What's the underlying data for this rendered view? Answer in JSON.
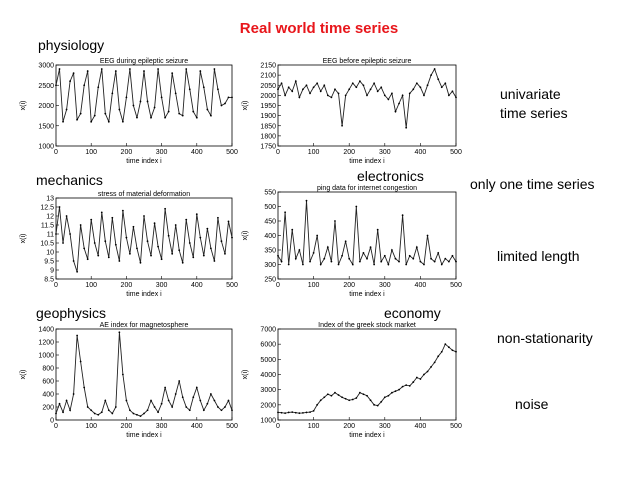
{
  "slide": {
    "title": "Real world time series",
    "title_color": "#e8161b"
  },
  "labels": {
    "physiology": "physiology",
    "mechanics": "mechanics",
    "electronics": "electronics",
    "geophysics": "geophysics",
    "economy": "economy"
  },
  "bullets": [
    {
      "line1": "univariate",
      "line2": "time series"
    },
    {
      "line1": "only one time series",
      "line2": ""
    },
    {
      "line1": "limited length",
      "line2": ""
    },
    {
      "line1": "non-stationarity",
      "line2": ""
    },
    {
      "line1": "noise",
      "line2": ""
    }
  ],
  "chart_data": [
    {
      "type": "line",
      "title": "EEG during epileptic seizure",
      "xlabel": "time index i",
      "ylabel": "x(i)",
      "xlim": [
        0,
        500
      ],
      "ylim": [
        1000,
        3000
      ],
      "xticks": [
        0,
        100,
        200,
        300,
        400,
        500
      ],
      "yticks": [
        1000,
        1500,
        2000,
        2500,
        3000
      ],
      "x": [
        0,
        10,
        20,
        30,
        40,
        50,
        60,
        70,
        80,
        90,
        100,
        110,
        120,
        130,
        140,
        150,
        160,
        170,
        180,
        190,
        200,
        210,
        220,
        230,
        240,
        250,
        260,
        270,
        280,
        290,
        300,
        310,
        320,
        330,
        340,
        350,
        360,
        370,
        380,
        390,
        400,
        410,
        420,
        430,
        440,
        450,
        460,
        470,
        480,
        490,
        500
      ],
      "y": [
        2500,
        2900,
        1600,
        1900,
        2600,
        2800,
        1650,
        1800,
        2500,
        2850,
        1600,
        1750,
        2450,
        2900,
        1800,
        1600,
        2300,
        2850,
        1900,
        1600,
        2200,
        2900,
        2000,
        1700,
        2100,
        2850,
        2100,
        1700,
        1950,
        2900,
        2200,
        1700,
        1850,
        2800,
        2300,
        1800,
        1750,
        2900,
        2400,
        1850,
        1700,
        2850,
        2450,
        1900,
        1750,
        2900,
        2400,
        2000,
        2050,
        2200,
        2200
      ]
    },
    {
      "type": "line",
      "title": "EEG before epileptic seizure",
      "xlabel": "time index i",
      "ylabel": "x(i)",
      "xlim": [
        0,
        500
      ],
      "ylim": [
        1750,
        2150
      ],
      "xticks": [
        0,
        100,
        200,
        300,
        400,
        500
      ],
      "yticks": [
        1750,
        1800,
        1850,
        1900,
        1950,
        2000,
        2050,
        2100,
        2150
      ],
      "x": [
        0,
        10,
        20,
        30,
        40,
        50,
        60,
        70,
        80,
        90,
        100,
        110,
        120,
        130,
        140,
        150,
        160,
        170,
        180,
        190,
        200,
        210,
        220,
        230,
        240,
        250,
        260,
        270,
        280,
        290,
        300,
        310,
        320,
        330,
        340,
        350,
        360,
        370,
        380,
        390,
        400,
        410,
        420,
        430,
        440,
        450,
        460,
        470,
        480,
        490,
        500
      ],
      "y": [
        2030,
        2060,
        2000,
        2040,
        2020,
        2070,
        1990,
        2030,
        2050,
        2010,
        2040,
        2060,
        2020,
        2050,
        2000,
        1990,
        2030,
        2010,
        1850,
        2000,
        2030,
        2060,
        2040,
        2070,
        2050,
        2000,
        2030,
        2060,
        2020,
        2040,
        2000,
        1980,
        2010,
        1920,
        1960,
        2000,
        1840,
        2010,
        2030,
        2060,
        2040,
        2000,
        2050,
        2100,
        2130,
        2080,
        2040,
        2060,
        2000,
        2020,
        1990
      ]
    },
    {
      "type": "line",
      "title": "stress of material deformation",
      "xlabel": "time index i",
      "ylabel": "x(i)",
      "xlim": [
        0,
        500
      ],
      "ylim": [
        8.5,
        13
      ],
      "xticks": [
        0,
        100,
        200,
        300,
        400,
        500
      ],
      "yticks": [
        8.5,
        9,
        9.5,
        10,
        10.5,
        11,
        11.5,
        12,
        12.5,
        13
      ],
      "x": [
        0,
        10,
        20,
        30,
        40,
        50,
        60,
        70,
        80,
        90,
        100,
        110,
        120,
        130,
        140,
        150,
        160,
        170,
        180,
        190,
        200,
        210,
        220,
        230,
        240,
        250,
        260,
        270,
        280,
        290,
        300,
        310,
        320,
        330,
        340,
        350,
        360,
        370,
        380,
        390,
        400,
        410,
        420,
        430,
        440,
        450,
        460,
        470,
        480,
        490,
        500
      ],
      "y": [
        11,
        12.5,
        10.5,
        12,
        11,
        9.5,
        8.9,
        11.5,
        10.2,
        9.6,
        11.8,
        10.5,
        9.8,
        12.2,
        10.6,
        9.7,
        11.9,
        10.4,
        9.5,
        12.3,
        10.8,
        9.9,
        11.4,
        10.2,
        9.4,
        12.0,
        10.6,
        9.8,
        11.6,
        10.3,
        9.6,
        12.4,
        10.9,
        9.9,
        11.5,
        10.1,
        9.4,
        11.8,
        10.5,
        9.7,
        12.1,
        10.8,
        9.8,
        11.3,
        10.2,
        9.5,
        11.9,
        10.6,
        9.9,
        11.7,
        10.8
      ]
    },
    {
      "type": "line",
      "title": "ping data for internet congestion",
      "xlabel": "time index i",
      "ylabel": "x(i)",
      "xlim": [
        0,
        500
      ],
      "ylim": [
        250,
        550
      ],
      "xticks": [
        0,
        100,
        200,
        300,
        400,
        500
      ],
      "yticks": [
        250,
        300,
        350,
        400,
        450,
        500,
        550
      ],
      "x": [
        0,
        10,
        20,
        30,
        40,
        50,
        60,
        70,
        80,
        90,
        100,
        110,
        120,
        130,
        140,
        150,
        160,
        170,
        180,
        190,
        200,
        210,
        220,
        230,
        240,
        250,
        260,
        270,
        280,
        290,
        300,
        310,
        320,
        330,
        340,
        350,
        360,
        370,
        380,
        390,
        400,
        410,
        420,
        430,
        440,
        450,
        460,
        470,
        480,
        490,
        500
      ],
      "y": [
        330,
        310,
        480,
        300,
        420,
        320,
        350,
        300,
        520,
        310,
        340,
        400,
        300,
        320,
        360,
        310,
        450,
        300,
        330,
        380,
        320,
        300,
        500,
        310,
        340,
        320,
        360,
        300,
        420,
        310,
        330,
        300,
        350,
        320,
        310,
        470,
        300,
        330,
        320,
        360,
        310,
        300,
        400,
        320,
        310,
        340,
        300,
        320,
        310,
        330,
        310
      ]
    },
    {
      "type": "line",
      "title": "AE index for magnetosphere",
      "xlabel": "time index i",
      "ylabel": "x(i)",
      "xlim": [
        0,
        500
      ],
      "ylim": [
        0,
        1400
      ],
      "xticks": [
        0,
        100,
        200,
        300,
        400,
        500
      ],
      "yticks": [
        0,
        200,
        400,
        600,
        800,
        1000,
        1200,
        1400
      ],
      "x": [
        0,
        10,
        20,
        30,
        40,
        50,
        60,
        70,
        80,
        90,
        100,
        110,
        120,
        130,
        140,
        150,
        160,
        170,
        180,
        190,
        200,
        210,
        220,
        230,
        240,
        250,
        260,
        270,
        280,
        290,
        300,
        310,
        320,
        330,
        340,
        350,
        360,
        370,
        380,
        390,
        400,
        410,
        420,
        430,
        440,
        450,
        460,
        470,
        480,
        490,
        500
      ],
      "y": [
        100,
        250,
        120,
        300,
        150,
        400,
        1300,
        900,
        500,
        200,
        150,
        100,
        80,
        120,
        300,
        150,
        100,
        200,
        1350,
        700,
        300,
        150,
        100,
        80,
        60,
        100,
        150,
        300,
        200,
        120,
        250,
        500,
        300,
        200,
        400,
        600,
        350,
        200,
        150,
        350,
        500,
        300,
        150,
        250,
        400,
        300,
        200,
        150,
        200,
        300,
        150
      ]
    },
    {
      "type": "line",
      "title": "Index of the greek stock market",
      "xlabel": "time index i",
      "ylabel": "x(i)",
      "xlim": [
        0,
        500
      ],
      "ylim": [
        1000,
        7000
      ],
      "xticks": [
        0,
        100,
        200,
        300,
        400,
        500
      ],
      "yticks": [
        1000,
        2000,
        3000,
        4000,
        5000,
        6000,
        7000
      ],
      "x": [
        0,
        10,
        20,
        30,
        40,
        50,
        60,
        70,
        80,
        90,
        100,
        110,
        120,
        130,
        140,
        150,
        160,
        170,
        180,
        190,
        200,
        210,
        220,
        230,
        240,
        250,
        260,
        270,
        280,
        290,
        300,
        310,
        320,
        330,
        340,
        350,
        360,
        370,
        380,
        390,
        400,
        410,
        420,
        430,
        440,
        450,
        460,
        470,
        480,
        490,
        500
      ],
      "y": [
        1500,
        1480,
        1450,
        1500,
        1520,
        1480,
        1450,
        1470,
        1500,
        1520,
        1600,
        2000,
        2300,
        2500,
        2700,
        2600,
        2800,
        2650,
        2500,
        2400,
        2300,
        2350,
        2450,
        2800,
        2700,
        2600,
        2300,
        2000,
        1950,
        2200,
        2500,
        2600,
        2800,
        2900,
        3000,
        3200,
        3300,
        3250,
        3500,
        3800,
        3700,
        4000,
        4200,
        4500,
        4800,
        5200,
        5500,
        6000,
        5800,
        5600,
        5500
      ]
    }
  ]
}
